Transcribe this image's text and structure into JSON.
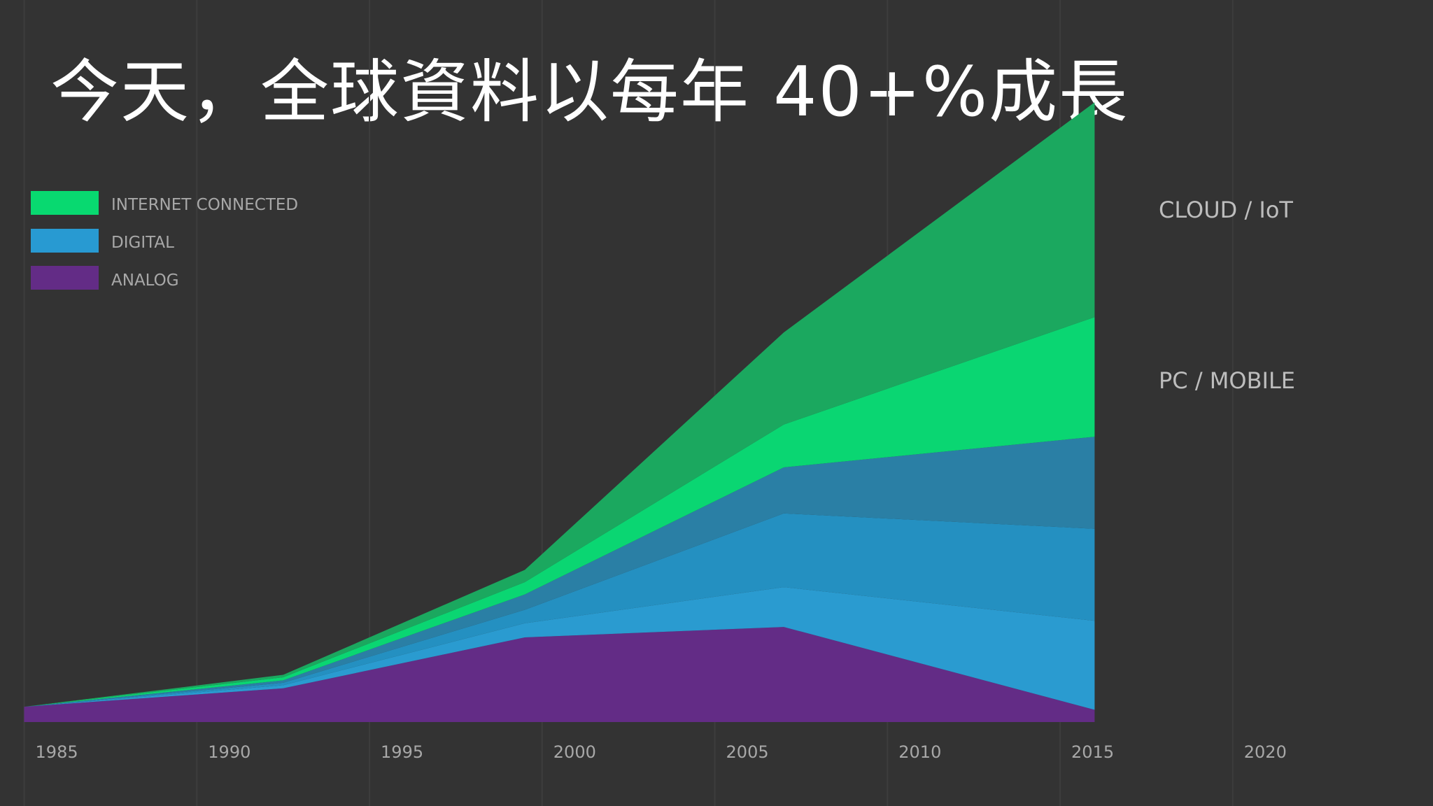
{
  "title": "今天，全球資料以每年 40+%成長",
  "chart_data": {
    "type": "area",
    "stacked": true,
    "x": [
      1985,
      1992.5,
      1999.5,
      2007,
      2016
    ],
    "xticks": [
      "1985",
      "1990",
      "1995",
      "2000",
      "2005",
      "2010",
      "2015",
      "2020"
    ],
    "xlim": [
      1984.3,
      2025.8
    ],
    "ylim": [
      0,
      100
    ],
    "grid": true,
    "legend": {
      "placement": "top-left",
      "entries": [
        {
          "label": "INTERNET CONNECTED",
          "color": "#08d970"
        },
        {
          "label": "DIGITAL",
          "color": "#289ad2"
        },
        {
          "label": "ANALOG",
          "color": "#632c86"
        }
      ]
    },
    "annotations": [
      "CLOUD / IoT",
      "PC / MOBILE"
    ],
    "series": [
      {
        "legend": "ANALOG",
        "color": "#632c86",
        "values": [
          2.5,
          5.5,
          13.8,
          15.5,
          2.0
        ]
      },
      {
        "legend": "DIGITAL",
        "color": "#2a9bd0",
        "values": [
          0.0,
          0.5,
          2.3,
          6.5,
          14.5
        ]
      },
      {
        "legend": "DIGITAL",
        "color": "#2490c1",
        "values": [
          0.0,
          0.4,
          2.2,
          12.0,
          15.0
        ]
      },
      {
        "legend": "DIGITAL",
        "color": "#2a7fa5",
        "values": [
          0.0,
          0.4,
          2.5,
          7.5,
          15.0
        ]
      },
      {
        "legend": "INTERNET CONNECTED",
        "color": "#0ad672",
        "values": [
          0.0,
          0.5,
          2.0,
          7.0,
          19.5
        ]
      },
      {
        "legend": "INTERNET CONNECTED",
        "color": "#1ba85f",
        "values": [
          0.0,
          0.4,
          2.0,
          15.0,
          35.0
        ]
      }
    ]
  }
}
